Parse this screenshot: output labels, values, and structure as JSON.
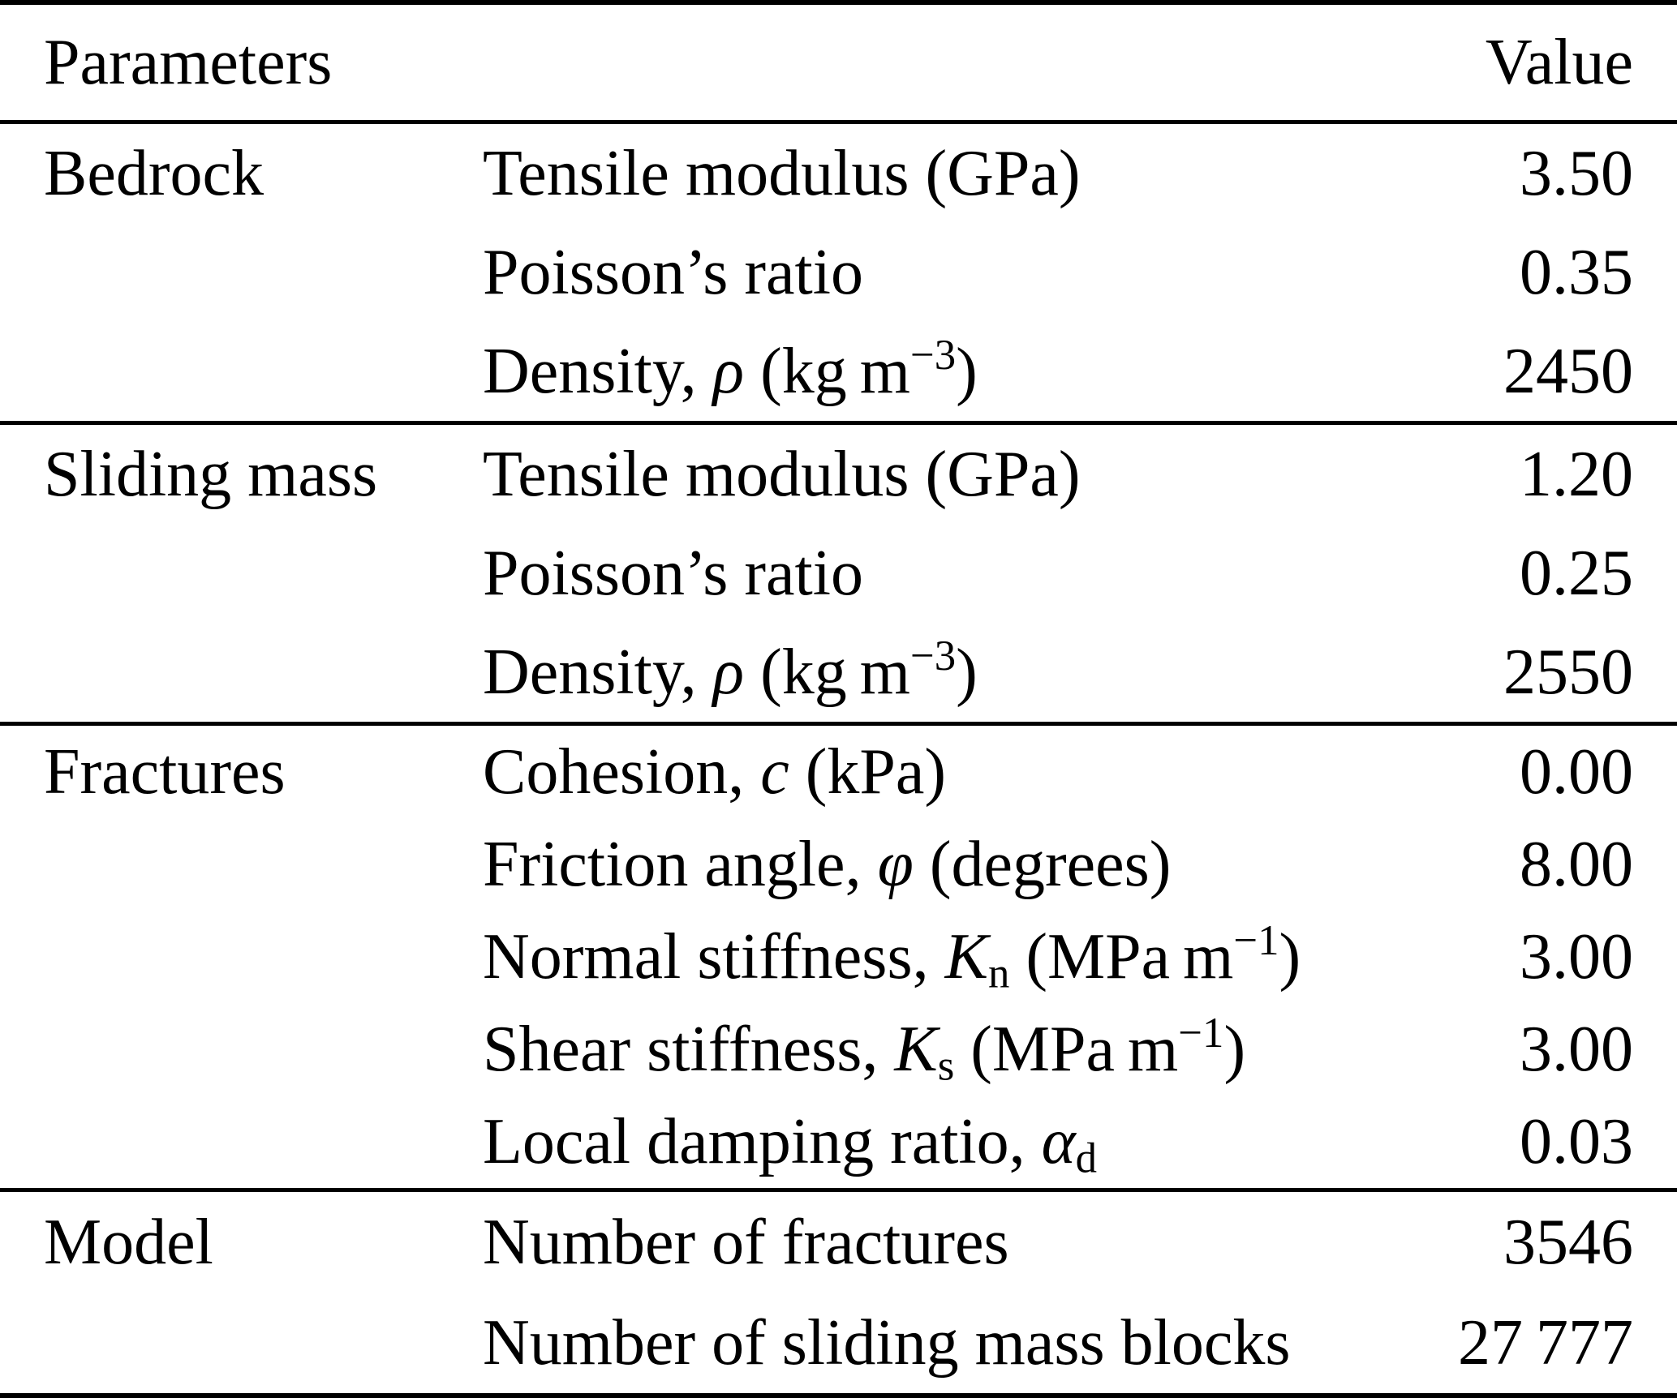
{
  "header": {
    "col_parameters": "Parameters",
    "col_value": "Value"
  },
  "sections": [
    {
      "group": "Bedrock",
      "rows": [
        {
          "pre": "Tensile modulus (GPa)",
          "sym": "",
          "sub": "",
          "mid": "",
          "sup": "",
          "post": "",
          "value": "3.50"
        },
        {
          "pre": "Poisson’s ratio",
          "sym": "",
          "sub": "",
          "mid": "",
          "sup": "",
          "post": "",
          "value": "0.35"
        },
        {
          "pre": "Density, ",
          "sym": "ρ",
          "sub": "",
          "mid": " (kg m",
          "sup": "−3",
          "post": ")",
          "value": "2450"
        }
      ]
    },
    {
      "group": "Sliding mass",
      "rows": [
        {
          "pre": "Tensile modulus (GPa)",
          "sym": "",
          "sub": "",
          "mid": "",
          "sup": "",
          "post": "",
          "value": "1.20"
        },
        {
          "pre": "Poisson’s ratio",
          "sym": "",
          "sub": "",
          "mid": "",
          "sup": "",
          "post": "",
          "value": "0.25"
        },
        {
          "pre": "Density, ",
          "sym": "ρ",
          "sub": "",
          "mid": " (kg m",
          "sup": "−3",
          "post": ")",
          "value": "2550"
        }
      ]
    },
    {
      "group": "Fractures",
      "rows": [
        {
          "pre": "Cohesion, ",
          "sym": "c",
          "sub": "",
          "mid": " (kPa)",
          "sup": "",
          "post": "",
          "value": "0.00"
        },
        {
          "pre": "Friction angle, ",
          "sym": "φ",
          "sub": "",
          "mid": " (degrees)",
          "sup": "",
          "post": "",
          "value": "8.00"
        },
        {
          "pre": "Normal stiffness, ",
          "sym": "K",
          "sub": "n",
          "mid": " (MPa m",
          "sup": "−1",
          "post": ")",
          "value": "3.00"
        },
        {
          "pre": "Shear stiffness, ",
          "sym": "K",
          "sub": "s",
          "mid": " (MPa m",
          "sup": "−1",
          "post": ")",
          "value": "3.00"
        },
        {
          "pre": "Local damping ratio, ",
          "sym": "α",
          "sub": "d",
          "mid": "",
          "sup": "",
          "post": "",
          "value": "0.03"
        }
      ]
    },
    {
      "group": "Model",
      "rows": [
        {
          "pre": "Number of fractures",
          "sym": "",
          "sub": "",
          "mid": "",
          "sup": "",
          "post": "",
          "value": "3546"
        },
        {
          "pre": "Number of sliding mass blocks",
          "sym": "",
          "sub": "",
          "mid": "",
          "sup": "",
          "post": "",
          "value": "27 777"
        }
      ]
    }
  ],
  "colors": {
    "text": "#000000",
    "background": "#ffffff",
    "rule": "#000000"
  }
}
